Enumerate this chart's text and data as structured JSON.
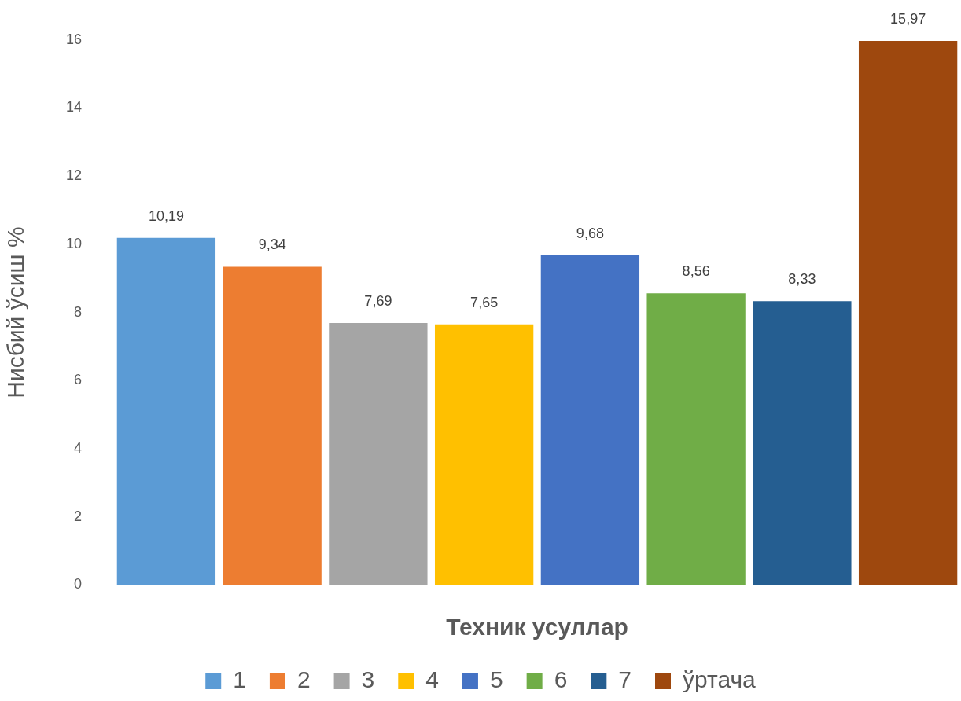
{
  "chart_data": {
    "type": "bar",
    "xlabel": "Техник усуллар",
    "ylabel": "Нисбий ўсиш %",
    "categories": [
      null
    ],
    "series": [
      {
        "name": "1",
        "color": "#5b9bd5",
        "values": [
          10.19
        ],
        "value_labels": [
          "10,19"
        ]
      },
      {
        "name": "2",
        "color": "#ed7d31",
        "values": [
          9.34
        ],
        "value_labels": [
          "9,34"
        ]
      },
      {
        "name": "3",
        "color": "#a5a5a5",
        "values": [
          7.69
        ],
        "value_labels": [
          "7,69"
        ]
      },
      {
        "name": "4",
        "color": "#ffc000",
        "values": [
          7.65
        ],
        "value_labels": [
          "7,65"
        ]
      },
      {
        "name": "5",
        "color": "#4472c4",
        "values": [
          9.68
        ],
        "value_labels": [
          "9,68"
        ]
      },
      {
        "name": "6",
        "color": "#70ad47",
        "values": [
          8.56
        ],
        "value_labels": [
          "8,56"
        ]
      },
      {
        "name": "7",
        "color": "#255e91",
        "values": [
          8.33
        ],
        "value_labels": [
          "8,33"
        ]
      },
      {
        "name": "ўртача",
        "color": "#9e480e",
        "values": [
          15.97
        ],
        "value_labels": [
          "15,97"
        ]
      }
    ],
    "ylim": [
      0,
      16
    ],
    "yticks": [
      0,
      2,
      4,
      6,
      8,
      10,
      12,
      14,
      16
    ],
    "grid": false,
    "legend": "bottom"
  }
}
